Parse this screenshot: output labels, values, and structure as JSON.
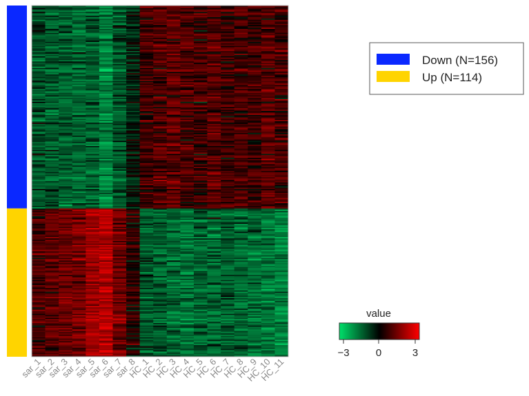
{
  "chart_data": {
    "type": "heatmap",
    "columns": [
      "sar_1",
      "sar_2",
      "sar_3",
      "sar_4",
      "sar_5",
      "sar_6",
      "sar_7",
      "sar_8",
      "HC_1",
      "HC_2",
      "HC_3",
      "HC_4",
      "HC_5",
      "HC_6",
      "HC_7",
      "HC_8",
      "HC_9",
      "HC_10",
      "HC_11"
    ],
    "row_groups": [
      {
        "label": "Down (N=156)",
        "n": 156,
        "color": "#0a28ff",
        "column_mean": [
          -0.9,
          -1.0,
          -1.1,
          -1.2,
          -1.1,
          -1.6,
          -0.9,
          -0.3,
          0.6,
          0.8,
          0.9,
          0.7,
          0.6,
          0.8,
          0.6,
          0.7,
          0.6,
          0.9,
          0.7
        ]
      },
      {
        "label": "Up (N=114)",
        "n": 114,
        "color": "#ffd400",
        "column_mean": [
          0.7,
          0.9,
          1.1,
          1.2,
          1.7,
          2.0,
          1.1,
          0.3,
          -1.0,
          -1.0,
          -1.2,
          -1.3,
          -1.1,
          -1.2,
          -1.0,
          -1.2,
          -1.2,
          -1.4,
          -1.5
        ]
      }
    ],
    "color_scale": {
      "title": "value",
      "min": -3,
      "mid": 0,
      "max": 3,
      "colors": [
        "#00e06a",
        "#000000",
        "#ff0000"
      ],
      "ticks": [
        "−3",
        "0",
        "3"
      ]
    }
  },
  "legend": {
    "items": [
      {
        "label": "Down (N=156)",
        "color": "#0a28ff"
      },
      {
        "label": "Up (N=114)",
        "color": "#ffd400"
      }
    ]
  }
}
